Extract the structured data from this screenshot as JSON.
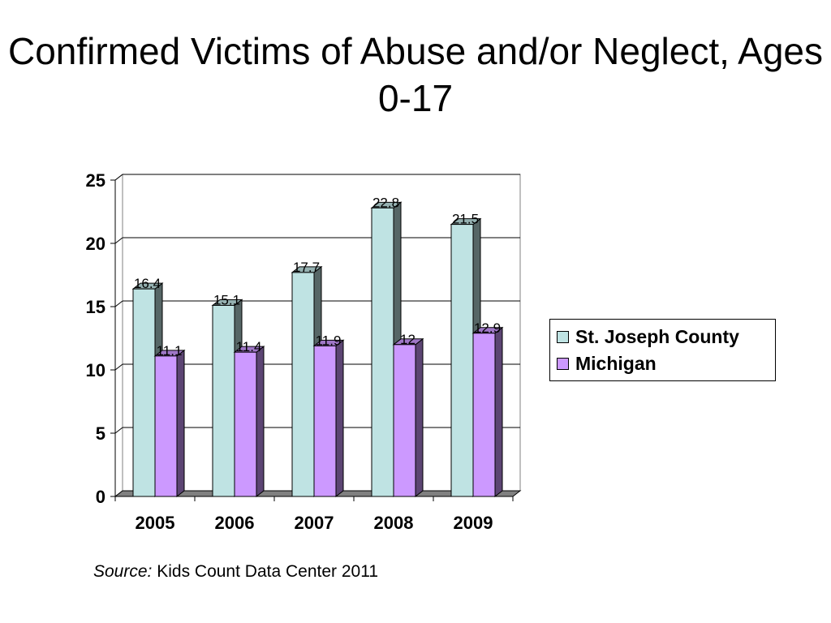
{
  "slide": {
    "title": "Confirmed Victims of Abuse and/or Neglect, Ages 0-17",
    "source_label": "Source:",
    "source_text": "Kids Count Data Center 2011"
  },
  "chart_data": {
    "type": "bar",
    "title": "",
    "xlabel": "",
    "ylabel": "",
    "categories": [
      "2005",
      "2006",
      "2007",
      "2008",
      "2009"
    ],
    "ylim": [
      0,
      25
    ],
    "yticks": [
      "0",
      "5",
      "10",
      "15",
      "20",
      "25"
    ],
    "grid": true,
    "legend_position": "right",
    "series": [
      {
        "name": "St. Joseph County",
        "values": [
          16.4,
          15.1,
          17.7,
          22.8,
          21.5
        ],
        "labels": [
          "16.4",
          "15.1",
          "17.7",
          "22.8",
          "21.5"
        ],
        "color": "#BFE3E3"
      },
      {
        "name": "Michigan",
        "values": [
          11.1,
          11.4,
          11.9,
          12,
          12.9
        ],
        "labels": [
          "11.1",
          "11.4",
          "11.9",
          "12",
          "12.9"
        ],
        "color": "#CC99FF"
      }
    ]
  }
}
